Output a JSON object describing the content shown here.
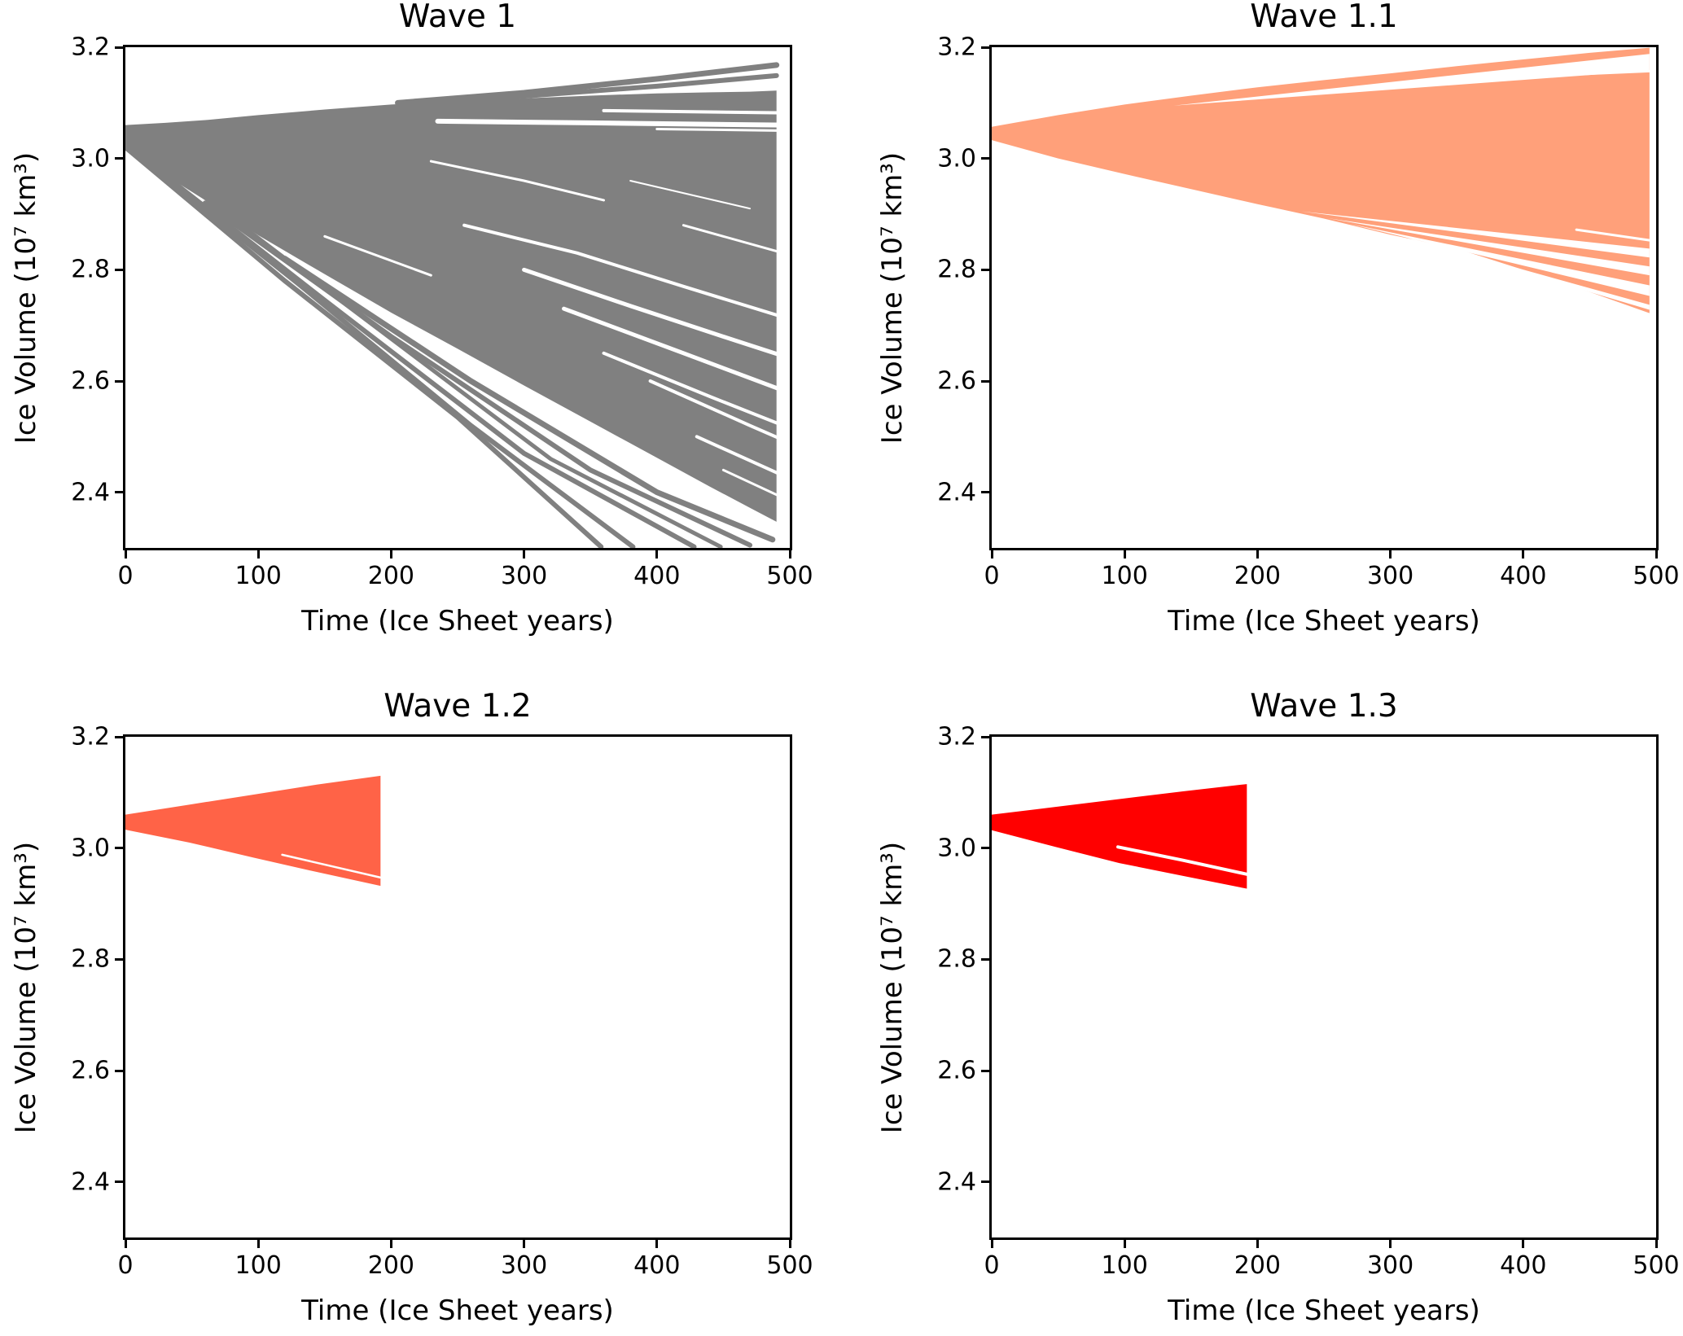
{
  "figure": {
    "background": "#ffffff",
    "spine_color": "#000000",
    "rows": 2,
    "cols": 2
  },
  "chart_data": [
    {
      "type": "area",
      "title": "Wave 1",
      "xlabel": "Time (Ice Sheet years)",
      "ylabel": "Ice Volume (10⁷ km³)",
      "color": "#808080",
      "xlim": [
        0,
        500
      ],
      "ylim": [
        2.3,
        3.2
      ],
      "xticks": [
        "0",
        "100",
        "200",
        "300",
        "400",
        "500"
      ],
      "yticks": [
        "3.2",
        "3.0",
        "2.8",
        "2.6",
        "2.4"
      ],
      "description": "Ensemble of ice-sheet trajectories starting near 3.04, fanning out between ~2.30 and ~3.17 by year 490",
      "envelope": {
        "x": [
          0,
          30,
          60,
          100,
          150,
          200,
          250,
          300,
          350,
          400,
          440,
          470,
          490
        ],
        "upper": [
          3.06,
          3.064,
          3.069,
          3.078,
          3.088,
          3.097,
          3.103,
          3.108,
          3.113,
          3.117,
          3.119,
          3.12,
          3.122
        ],
        "lower": [
          3.015,
          2.97,
          2.925,
          2.862,
          2.792,
          2.723,
          2.658,
          2.592,
          2.527,
          2.462,
          2.41,
          2.372,
          2.347
        ]
      },
      "lines": [
        {
          "pts": [
            [
              205,
              3.1
            ],
            [
              300,
              3.118
            ],
            [
              400,
              3.143
            ],
            [
              490,
              3.168
            ]
          ],
          "w": 7
        },
        {
          "pts": [
            [
              225,
              3.103
            ],
            [
              300,
              3.112
            ],
            [
              400,
              3.13
            ],
            [
              490,
              3.149
            ]
          ],
          "w": 6
        },
        {
          "pts": [
            [
              0,
              3.02
            ],
            [
              120,
              2.78
            ],
            [
              250,
              2.535
            ],
            [
              358,
              2.302
            ]
          ],
          "w": 6
        },
        {
          "pts": [
            [
              0,
              3.022
            ],
            [
              130,
              2.775
            ],
            [
              260,
              2.52
            ],
            [
              382,
              2.302
            ]
          ],
          "w": 6
        },
        {
          "pts": [
            [
              0,
              3.025
            ],
            [
              150,
              2.745
            ],
            [
              300,
              2.47
            ],
            [
              428,
              2.302
            ]
          ],
          "w": 6
        },
        {
          "pts": [
            [
              10,
              3.02
            ],
            [
              170,
              2.73
            ],
            [
              320,
              2.46
            ],
            [
              448,
              2.302
            ]
          ],
          "w": 5
        },
        {
          "pts": [
            [
              60,
              2.92
            ],
            [
              200,
              2.68
            ],
            [
              350,
              2.44
            ],
            [
              470,
              2.305
            ]
          ],
          "w": 6
        },
        {
          "pts": [
            [
              120,
              2.82
            ],
            [
              260,
              2.6
            ],
            [
              400,
              2.4
            ],
            [
              487,
              2.315
            ]
          ],
          "w": 7
        }
      ],
      "white_wedges": [],
      "white_streaks": [
        {
          "pts": [
            [
              235,
              3.067
            ],
            [
              350,
              3.064
            ],
            [
              495,
              3.06
            ]
          ],
          "w": 6
        },
        {
          "pts": [
            [
              360,
              3.086
            ],
            [
              495,
              3.082
            ]
          ],
          "w": 4
        },
        {
          "pts": [
            [
              400,
              3.053
            ],
            [
              495,
              3.05
            ]
          ],
          "w": 3
        },
        {
          "pts": [
            [
              230,
              2.995
            ],
            [
              300,
              2.96
            ],
            [
              360,
              2.925
            ]
          ],
          "w": 3
        },
        {
          "pts": [
            [
              255,
              2.88
            ],
            [
              340,
              2.83
            ],
            [
              420,
              2.77
            ],
            [
              495,
              2.715
            ]
          ],
          "w": 4
        },
        {
          "pts": [
            [
              300,
              2.8
            ],
            [
              380,
              2.735
            ],
            [
              460,
              2.672
            ],
            [
              495,
              2.645
            ]
          ],
          "w": 5
        },
        {
          "pts": [
            [
              330,
              2.73
            ],
            [
              420,
              2.65
            ],
            [
              495,
              2.583
            ]
          ],
          "w": 5
        },
        {
          "pts": [
            [
              360,
              2.65
            ],
            [
              440,
              2.572
            ],
            [
              495,
              2.52
            ]
          ],
          "w": 4
        },
        {
          "pts": [
            [
              395,
              2.6
            ],
            [
              470,
              2.52
            ],
            [
              495,
              2.494
            ]
          ],
          "w": 4
        },
        {
          "pts": [
            [
              430,
              2.5
            ],
            [
              495,
              2.43
            ]
          ],
          "w": 4
        },
        {
          "pts": [
            [
              450,
              2.44
            ],
            [
              495,
              2.39
            ]
          ],
          "w": 3
        },
        {
          "pts": [
            [
              150,
              2.86
            ],
            [
              230,
              2.79
            ]
          ],
          "w": 3
        },
        {
          "pts": [
            [
              420,
              2.88
            ],
            [
              495,
              2.83
            ]
          ],
          "w": 3
        },
        {
          "pts": [
            [
              380,
              2.96
            ],
            [
              470,
              2.91
            ]
          ],
          "w": 2
        },
        {
          "pts": [
            [
              95,
              2.86
            ],
            [
              200,
              2.7
            ],
            [
              280,
              2.575
            ]
          ],
          "w": 3
        },
        {
          "pts": [
            [
              110,
              2.84
            ],
            [
              210,
              2.675
            ],
            [
              290,
              2.55
            ]
          ],
          "w": 3
        }
      ]
    },
    {
      "type": "area",
      "title": "Wave 1.1",
      "xlabel": "Time (Ice Sheet years)",
      "ylabel": "Ice Volume (10⁷ km³)",
      "color": "#FFA07A",
      "xlim": [
        0,
        500
      ],
      "ylim": [
        2.3,
        3.2
      ],
      "xticks": [
        "0",
        "100",
        "200",
        "300",
        "400",
        "500"
      ],
      "yticks": [
        "3.2",
        "3.0",
        "2.8",
        "2.6",
        "2.4"
      ],
      "description": "Narrower ensemble fan spreading from ~3.04 to between ~2.73 and ~3.20 by year 495",
      "envelope": {
        "x": [
          0,
          50,
          100,
          150,
          200,
          250,
          300,
          350,
          400,
          450,
          495
        ],
        "upper": [
          3.057,
          3.078,
          3.097,
          3.113,
          3.128,
          3.141,
          3.153,
          3.166,
          3.178,
          3.19,
          3.199
        ],
        "lower": [
          3.033,
          3.0,
          2.972,
          2.945,
          2.918,
          2.892,
          2.863,
          2.838,
          2.8,
          2.76,
          2.722
        ]
      },
      "lines": [],
      "white_wedges": [
        [
          [
            137,
            3.095
          ],
          [
            495,
            3.188
          ],
          [
            495,
            3.158
          ]
        ],
        [
          [
            233,
            2.905
          ],
          [
            495,
            2.838
          ],
          [
            495,
            2.822
          ]
        ],
        [
          [
            252,
            2.893
          ],
          [
            495,
            2.806
          ],
          [
            495,
            2.79
          ]
        ],
        [
          [
            270,
            2.882
          ],
          [
            495,
            2.772
          ],
          [
            495,
            2.753
          ]
        ],
        [
          [
            298,
            2.868
          ],
          [
            495,
            2.737
          ],
          [
            495,
            2.728
          ]
        ]
      ],
      "white_streaks": [
        {
          "pts": [
            [
              390,
              3.146
            ],
            [
              495,
              3.157
            ]
          ],
          "w": 3
        },
        {
          "pts": [
            [
              440,
              2.872
            ],
            [
              495,
              2.853
            ]
          ],
          "w": 3
        }
      ]
    },
    {
      "type": "area",
      "title": "Wave 1.2",
      "xlabel": "Time (Ice Sheet years)",
      "ylabel": "Ice Volume (10⁷ km³)",
      "color": "#FF6347",
      "xlim": [
        0,
        500
      ],
      "ylim": [
        2.3,
        3.2
      ],
      "xticks": [
        "0",
        "100",
        "200",
        "300",
        "400",
        "500"
      ],
      "yticks": [
        "3.2",
        "3.0",
        "2.8",
        "2.6",
        "2.4"
      ],
      "description": "Short ensemble fan ending near year 192, spanning ~2.93 to ~3.13",
      "envelope": {
        "x": [
          0,
          48,
          96,
          144,
          192
        ],
        "upper": [
          3.06,
          3.078,
          3.096,
          3.114,
          3.13
        ],
        "lower": [
          3.033,
          3.01,
          2.983,
          2.957,
          2.932
        ]
      },
      "lines": [],
      "white_wedges": [],
      "white_streaks": [
        {
          "pts": [
            [
              118,
              2.988
            ],
            [
              192,
              2.947
            ]
          ],
          "w": 2.5
        }
      ]
    },
    {
      "type": "area",
      "title": "Wave 1.3",
      "xlabel": "Time (Ice Sheet years)",
      "ylabel": "Ice Volume (10⁷ km³)",
      "color": "#FF0000",
      "xlim": [
        0,
        500
      ],
      "ylim": [
        2.3,
        3.2
      ],
      "xticks": [
        "0",
        "100",
        "200",
        "300",
        "400",
        "500"
      ],
      "yticks": [
        "3.2",
        "3.0",
        "2.8",
        "2.6",
        "2.4"
      ],
      "description": "Short ensemble fan ending near year 192, spanning ~2.93 to ~3.12, with one detached lower trajectory bundle",
      "envelope": {
        "x": [
          0,
          48,
          96,
          144,
          192
        ],
        "upper": [
          3.06,
          3.074,
          3.088,
          3.102,
          3.115
        ],
        "lower": [
          3.032,
          3.002,
          2.973,
          2.95,
          2.927
        ]
      },
      "lines": [],
      "white_wedges": [],
      "white_streaks": [
        {
          "pts": [
            [
              95,
              3.002
            ],
            [
              144,
              2.978
            ],
            [
              192,
              2.953
            ]
          ],
          "w": 4
        }
      ]
    }
  ]
}
